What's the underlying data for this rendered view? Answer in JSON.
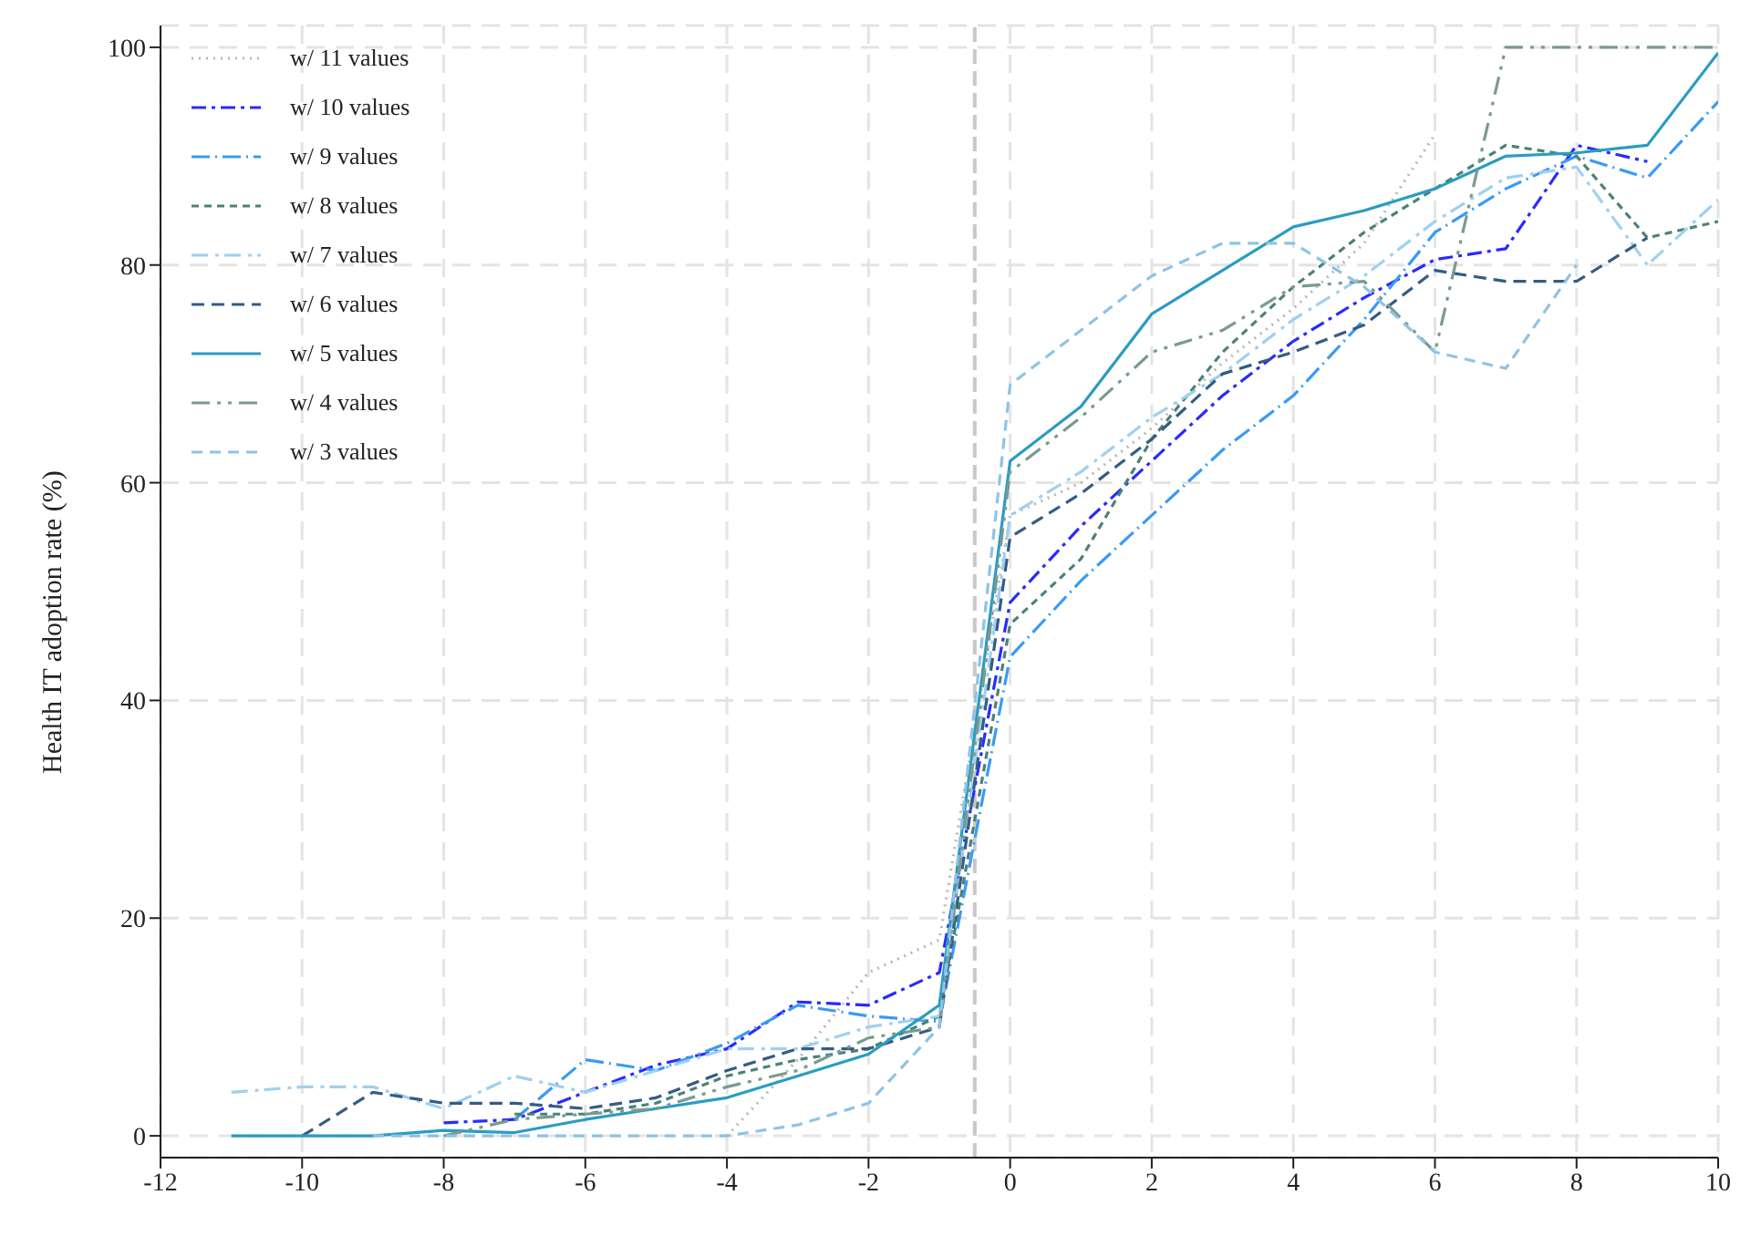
{
  "chart_data": {
    "type": "line",
    "ylabel": "Health IT adoption rate (%)",
    "xlim": [
      -12,
      10
    ],
    "ylim": [
      -2,
      102
    ],
    "xticks": [
      -12,
      -10,
      -8,
      -6,
      -4,
      -2,
      0,
      2,
      4,
      6,
      8,
      10
    ],
    "yticks": [
      0,
      20,
      40,
      60,
      80,
      100
    ],
    "grid": true,
    "legend": "top left",
    "marker": "none",
    "ref_lines": [
      {
        "axis": "x",
        "value": -0.5,
        "color": "#c8c8c8",
        "line_style": "dashed"
      }
    ],
    "series": [
      {
        "name": "w/ 11 values",
        "color": "#b8b8b8",
        "line_style": "dotted",
        "x": [
          -4,
          -3,
          -2,
          -1,
          0,
          1,
          2,
          3,
          4,
          5,
          6
        ],
        "values": [
          0,
          7,
          15,
          18,
          57,
          60,
          65,
          71,
          76,
          82,
          92
        ]
      },
      {
        "name": "w/ 10 values",
        "color": "#2a2aff",
        "line_style": "dashed",
        "x": [
          -8,
          -7,
          -6,
          -5,
          -4,
          -3,
          -2,
          -1,
          0,
          1,
          2,
          3,
          4,
          5,
          6,
          7,
          8,
          9
        ],
        "values": [
          1.2,
          1.5,
          4,
          6.5,
          8,
          12.3,
          12,
          15,
          49,
          56,
          62,
          68,
          73,
          77,
          80.5,
          81.5,
          91,
          89.5
        ]
      },
      {
        "name": "w/ 9 values",
        "color": "#3a9af5",
        "line_style": "dashed",
        "x": [
          -7,
          -6,
          -5,
          -4,
          -3,
          -2,
          -1,
          0,
          1,
          2,
          3,
          4,
          5,
          6,
          7,
          8,
          9,
          10
        ],
        "values": [
          1.5,
          7,
          6,
          8.5,
          12,
          11,
          10.5,
          44,
          51,
          57,
          63,
          68,
          75,
          83,
          87,
          90,
          88,
          95
        ]
      },
      {
        "name": "w/ 8 values",
        "color": "#4a8278",
        "line_style": "dashed",
        "x": [
          -7,
          -6,
          -5,
          -4,
          -3,
          -2,
          -1,
          0,
          1,
          2,
          3,
          4,
          5,
          6,
          7,
          8,
          9,
          10
        ],
        "values": [
          2,
          2,
          3,
          5.5,
          7,
          8,
          11,
          47,
          53,
          64,
          72,
          78,
          83,
          87,
          91,
          90,
          82.5,
          84
        ]
      },
      {
        "name": "w/ 7 values",
        "color": "#9fd0f0",
        "line_style": "dashed",
        "x": [
          -11,
          -10,
          -9,
          -8,
          -7,
          -6,
          -5,
          -4,
          -3,
          -2,
          -1,
          0,
          1,
          2,
          3,
          4,
          5,
          6,
          7,
          8,
          9,
          10
        ],
        "values": [
          4,
          4.5,
          4.5,
          2.5,
          5.5,
          4,
          6,
          8,
          8,
          10,
          11,
          57,
          61,
          66,
          70,
          75,
          79,
          84,
          88,
          89,
          80,
          86
        ]
      },
      {
        "name": "w/ 6 values",
        "color": "#355c82",
        "line_style": "dashed",
        "x": [
          -10,
          -9,
          -8,
          -7,
          -6,
          -5,
          -4,
          -3,
          -2,
          -1,
          0,
          1,
          2,
          3,
          4,
          5,
          6,
          7,
          8,
          9
        ],
        "values": [
          0,
          4,
          3,
          3,
          2.5,
          3.5,
          6,
          8,
          8,
          10,
          55,
          59,
          64,
          70,
          72,
          74.5,
          79.5,
          78.5,
          78.5,
          82.5
        ]
      },
      {
        "name": "w/ 5 values",
        "color": "#2a9cc2",
        "line_style": "solid",
        "x": [
          -11,
          -10,
          -9,
          -8,
          -7,
          -6,
          -5,
          -4,
          -3,
          -2,
          -1,
          0,
          1,
          2,
          3,
          4,
          5,
          6,
          7,
          8,
          9,
          10
        ],
        "values": [
          0,
          0,
          0,
          0.5,
          0.3,
          1.5,
          2.5,
          3.5,
          5.5,
          7.5,
          12,
          62,
          67,
          75.5,
          79.5,
          83.5,
          85,
          87,
          90,
          90.3,
          91,
          99.5
        ]
      },
      {
        "name": "w/ 4 values",
        "color": "#7a9a90",
        "line_style": "dashed",
        "x": [
          -8,
          -7,
          -6,
          -5,
          -4,
          -3,
          -2,
          -1,
          0,
          1,
          2,
          3,
          4,
          5,
          6,
          7,
          8,
          9,
          10
        ],
        "values": [
          0,
          1.5,
          2,
          2.5,
          4.5,
          6,
          9,
          10,
          61,
          66,
          72,
          74,
          78,
          78.5,
          72,
          100,
          100,
          100,
          100
        ]
      },
      {
        "name": "w/ 3 values",
        "color": "#8ec3e6",
        "line_style": "dashed",
        "x": [
          -9,
          -8,
          -7,
          -6,
          -5,
          -4,
          -3,
          -2,
          -1,
          0,
          1,
          2,
          3,
          4,
          5,
          6,
          7,
          8
        ],
        "values": [
          0,
          0,
          0,
          0,
          0,
          0,
          1,
          3,
          10,
          69,
          74,
          79,
          82,
          82,
          78,
          72,
          70.5,
          80
        ]
      }
    ]
  }
}
